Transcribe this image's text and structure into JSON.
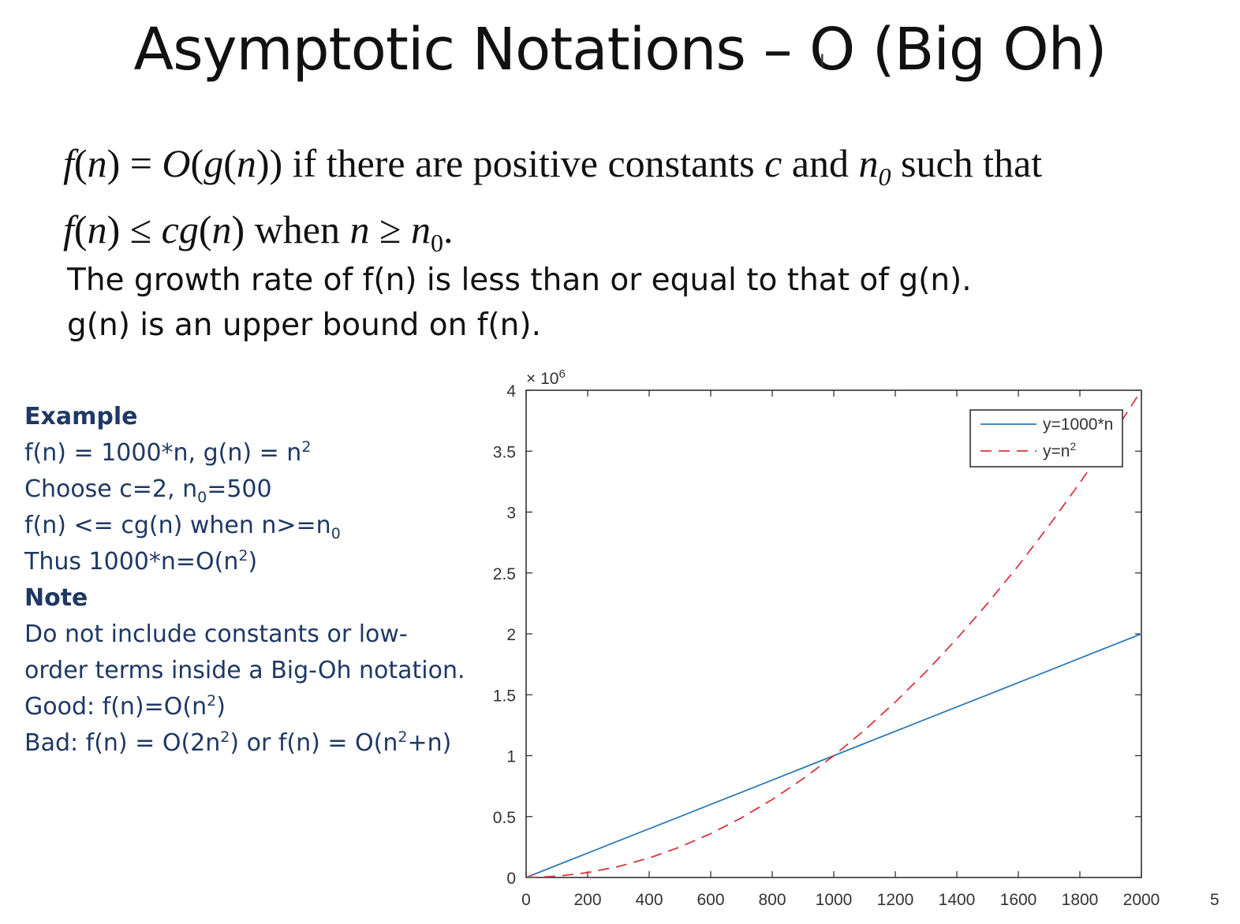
{
  "title": "Asymptotic Notations – O (Big Oh)",
  "definition": {
    "line1": {
      "lhs": "f",
      "n": "n",
      "eq": "=",
      "O": "O",
      "g": "g",
      "if_text": "if  there are positive constants",
      "c": "c",
      "and_text": "and",
      "n0_base": "n",
      "n0_sub": "0",
      "such_that": "such that"
    },
    "line2": {
      "f": "f",
      "n": "n",
      "leq": "≤",
      "cg": "cg",
      "when_text": "when",
      "geq": "≥",
      "n0_base": "n",
      "n0_sub": "0",
      "period": "."
    },
    "growth_text": "The growth rate of f(n) is less than or equal to that of g(n).",
    "bound_text": "g(n) is an upper bound on f(n)."
  },
  "example": {
    "heading": "Example",
    "line1_a": "f(n) = 1000*n, g(n) = n",
    "line1_sup": "2",
    "line2_a": "Choose c=2, n",
    "line2_sub": "0",
    "line2_b": "=500",
    "line3_a": "f(n) <= cg(n) when n>=n",
    "line3_sub": "0",
    "line4_a": "Thus 1000*n=O(n",
    "line4_sup": "2",
    "line4_b": ")",
    "note_heading": "Note",
    "note_text": "Do not include constants or low-order terms inside a Big-Oh notation.",
    "good_a": "Good: f(n)=O(n",
    "good_sup": "2",
    "good_b": ")",
    "bad_a": "Bad: f(n) = O(2n",
    "bad_sup1": "2",
    "bad_b": ") or f(n) = O(n",
    "bad_sup2": "2",
    "bad_c": "+n)"
  },
  "chart_data": {
    "type": "line",
    "x": [
      0,
      100,
      200,
      300,
      400,
      500,
      600,
      700,
      800,
      900,
      1000,
      1100,
      1200,
      1300,
      1400,
      1500,
      1600,
      1700,
      1800,
      1900,
      2000
    ],
    "series": [
      {
        "name": "y=1000*n",
        "color": "#2e7ab5",
        "style": "solid",
        "values": [
          0,
          100000,
          200000,
          300000,
          400000,
          500000,
          600000,
          700000,
          800000,
          900000,
          1000000,
          1100000,
          1200000,
          1300000,
          1400000,
          1500000,
          1600000,
          1700000,
          1800000,
          1900000,
          2000000
        ]
      },
      {
        "name": "y=n^2",
        "color": "#d9363e",
        "style": "dashed",
        "values": [
          0,
          10000,
          40000,
          90000,
          160000,
          250000,
          360000,
          490000,
          640000,
          810000,
          1000000,
          1210000,
          1440000,
          1690000,
          1960000,
          2250000,
          2560000,
          2890000,
          3240000,
          3610000,
          4000000
        ]
      }
    ],
    "legend": [
      {
        "base": "y=1000*n",
        "sup": ""
      },
      {
        "base": "y=n",
        "sup": "2"
      }
    ],
    "legend_position": "top-right",
    "xlim": [
      0,
      2000
    ],
    "ylim": [
      0,
      4000000
    ],
    "xticks": [
      0,
      200,
      400,
      600,
      800,
      1000,
      1200,
      1400,
      1600,
      1800,
      2000
    ],
    "xtick_labels": [
      "0",
      "200",
      "400",
      "600",
      "800",
      "1000",
      "1200",
      "1400",
      "1600",
      "1800",
      "2000"
    ],
    "yticks": [
      0,
      500000,
      1000000,
      1500000,
      2000000,
      2500000,
      3000000,
      3500000,
      4000000
    ],
    "ytick_labels": [
      "0",
      "0.5",
      "1",
      "1.5",
      "2",
      "2.5",
      "3",
      "3.5",
      "4"
    ],
    "y_multiplier": "× 10",
    "y_multiplier_exp": "6",
    "grid": false,
    "edge_label": "5"
  }
}
